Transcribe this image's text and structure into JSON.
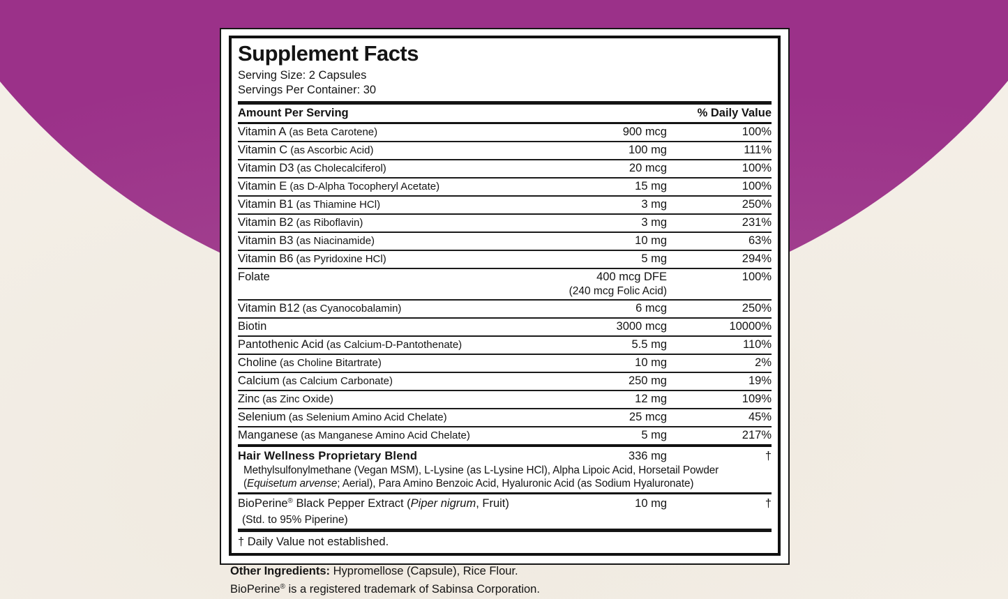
{
  "colors": {
    "purple_accent": "#9b3189",
    "cream_background": "#f4efe7",
    "panel_background": "#ffffff",
    "text": "#141414"
  },
  "header": {
    "title": "Supplement Facts",
    "serving_size": "Serving Size: 2 Capsules",
    "servings_per_container": "Servings Per Container: 30",
    "amount_col": "Amount Per Serving",
    "dv_col": "% Daily Value"
  },
  "rows": [
    {
      "name": "Vitamin A",
      "detail": "(as Beta Carotene)",
      "amount": "900 mcg",
      "dv": "100%"
    },
    {
      "name": "Vitamin C",
      "detail": "(as Ascorbic Acid)",
      "amount": "100 mg",
      "dv": "111%"
    },
    {
      "name": "Vitamin D3",
      "detail": "(as Cholecalciferol)",
      "amount": "20 mcg",
      "dv": "100%"
    },
    {
      "name": "Vitamin E",
      "detail": "(as D-Alpha Tocopheryl Acetate)",
      "amount": "15 mg",
      "dv": "100%"
    },
    {
      "name": "Vitamin B1",
      "detail": "(as Thiamine HCl)",
      "amount": "3 mg",
      "dv": "250%"
    },
    {
      "name": "Vitamin B2",
      "detail": "(as Riboflavin)",
      "amount": "3 mg",
      "dv": "231%"
    },
    {
      "name": "Vitamin B3",
      "detail": "(as Niacinamide)",
      "amount": "10 mg",
      "dv": "63%"
    },
    {
      "name": "Vitamin B6",
      "detail": "(as Pyridoxine HCl)",
      "amount": "5 mg",
      "dv": "294%"
    },
    {
      "name": "Folate",
      "amount": "400 mcg DFE",
      "amount2": "(240 mcg Folic Acid)",
      "dv": "100%"
    },
    {
      "name": "Vitamin B12",
      "detail": "(as Cyanocobalamin)",
      "amount": "6 mcg",
      "dv": "250%"
    },
    {
      "name": "Biotin",
      "amount": "3000 mcg",
      "dv": "10000%"
    },
    {
      "name": "Pantothenic Acid",
      "detail": "(as Calcium-D-Pantothenate)",
      "amount": "5.5 mg",
      "dv": "110%"
    },
    {
      "name": "Choline",
      "detail": "(as Choline Bitartrate)",
      "amount": "10 mg",
      "dv": "2%"
    },
    {
      "name": "Calcium",
      "detail": "(as Calcium Carbonate)",
      "amount": "250 mg",
      "dv": "19%"
    },
    {
      "name": "Zinc",
      "detail": "(as Zinc Oxide)",
      "amount": "12 mg",
      "dv": "109%"
    },
    {
      "name": "Selenium",
      "detail": "(as Selenium Amino Acid Chelate)",
      "amount": "25 mcg",
      "dv": "45%"
    },
    {
      "name": "Manganese",
      "detail": "(as Manganese Amino Acid Chelate)",
      "amount": "5 mg",
      "dv": "217%"
    }
  ],
  "blend": {
    "name": "Hair Wellness Proprietary Blend",
    "amount": "336 mg",
    "dv": "†",
    "desc_line1": "Methylsulfonylmethane (Vegan MSM), L-Lysine (as L-Lysine HCl), Alpha Lipoic Acid, Horsetail Powder",
    "desc_line2_pre": "(",
    "desc_line2_italic": "Equisetum arvense",
    "desc_line2_post": "; Aerial), Para Amino Benzoic Acid, Hyaluronic Acid (as Sodium Hyaluronate)"
  },
  "bioperine": {
    "brand": "BioPerine",
    "registered_mark": "®",
    "name_rest": " Black Pepper Extract (",
    "latin_italic": "Piper nigrum",
    "name_end": ", Fruit)",
    "amount": "10 mg",
    "dv": "†",
    "standardization": "(Std. to 95% Piperine)"
  },
  "footnotes": {
    "daily_value": "† Daily Value not established."
  },
  "footer": {
    "other_ingredients_label": "Other Ingredients:",
    "other_ingredients_text": " Hypromellose (Capsule), Rice Flour.",
    "trademark_brand": "BioPerine",
    "trademark_mark": "®",
    "trademark_text": " is a registered trademark of Sabinsa Corporation."
  }
}
